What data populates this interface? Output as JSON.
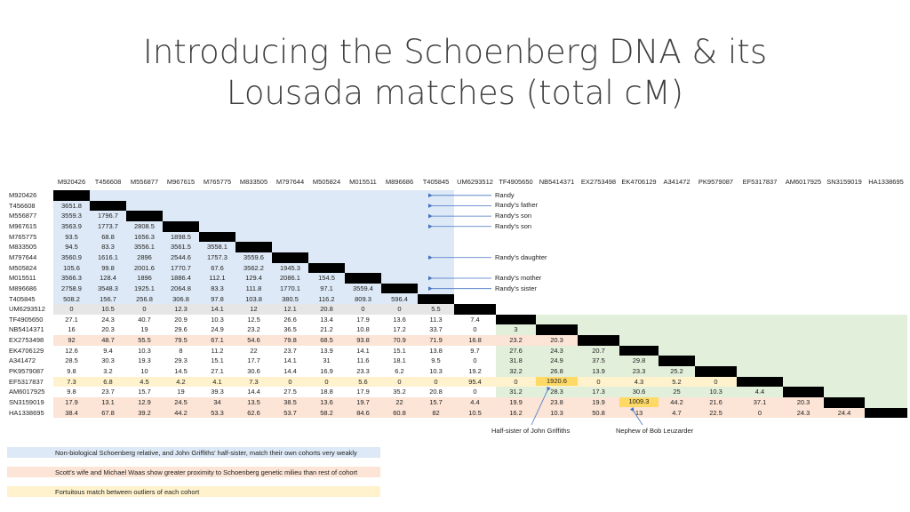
{
  "title_lines": [
    "Introducing the Schoenberg DNA & its",
    "Lousada matches (total cM)"
  ],
  "colors": {
    "title": "#404040",
    "blue_block": "#dde9f6",
    "green_block": "#e2efda",
    "salmon_row": "#fce4d6",
    "pale_yellow_row": "#fff2cc",
    "highlight": "#ffd966",
    "arrow": "#4472c4",
    "black": "#000000"
  },
  "matrix": {
    "ids": [
      "M920426",
      "T456608",
      "M556877",
      "M967615",
      "M765775",
      "M833505",
      "M797644",
      "M505824",
      "M015511",
      "M896686",
      "T405845",
      "UM6293512",
      "TF4905650",
      "NB5414371",
      "EX2753498",
      "EK4706129",
      "A341472",
      "PK9579087",
      "EF5317837",
      "AM6017925",
      "SN3159019",
      "HA1338695"
    ],
    "rows": [
      [],
      [
        "3651.8"
      ],
      [
        "3559.3",
        "1796.7"
      ],
      [
        "3563.9",
        "1773.7",
        "2808.5"
      ],
      [
        "93.5",
        "68.8",
        "1656.3",
        "1898.5"
      ],
      [
        "94.5",
        "83.3",
        "3556.1",
        "3561.5",
        "3558.1"
      ],
      [
        "3560.9",
        "1616.1",
        "2896",
        "2544.6",
        "1757.3",
        "3559.6"
      ],
      [
        "105.6",
        "99.8",
        "2001.6",
        "1770.7",
        "67.6",
        "3562.2",
        "1945.3"
      ],
      [
        "3566.3",
        "128.4",
        "1896",
        "1886.4",
        "112.1",
        "129.4",
        "2086.1",
        "154.5"
      ],
      [
        "2758.9",
        "3548.3",
        "1925.1",
        "2064.8",
        "83.3",
        "111.8",
        "1770.1",
        "97.1",
        "3559.4"
      ],
      [
        "508.2",
        "156.7",
        "256.8",
        "306.8",
        "97.8",
        "103.8",
        "380.5",
        "116.2",
        "809.3",
        "596.4"
      ],
      [
        "0",
        "10.5",
        "0",
        "12.3",
        "14.1",
        "12",
        "12.1",
        "20.8",
        "0",
        "0",
        "5.5"
      ],
      [
        "27.1",
        "24.3",
        "40.7",
        "20.9",
        "10.3",
        "12.5",
        "26.6",
        "13.4",
        "17.9",
        "13.6",
        "11.3",
        "7.4"
      ],
      [
        "16",
        "20.3",
        "19",
        "29.6",
        "24.9",
        "23.2",
        "36.5",
        "21.2",
        "10.8",
        "17.2",
        "33.7",
        "0",
        "3"
      ],
      [
        "92",
        "48.7",
        "55.5",
        "79.5",
        "67.1",
        "54.6",
        "79.8",
        "68.5",
        "93.8",
        "70.9",
        "71.9",
        "16.8",
        "23.2",
        "20.3"
      ],
      [
        "12.6",
        "9.4",
        "10.3",
        "8",
        "11.2",
        "22",
        "23.7",
        "13.9",
        "14.1",
        "15.1",
        "13.8",
        "9.7",
        "27.6",
        "24.3",
        "20.7"
      ],
      [
        "28.5",
        "30.3",
        "19.3",
        "29.3",
        "15.1",
        "17.7",
        "14.1",
        "31",
        "11.6",
        "18.1",
        "9.5",
        "0",
        "31.8",
        "24.9",
        "37.5",
        "29.8"
      ],
      [
        "9.8",
        "3.2",
        "10",
        "14.5",
        "27.1",
        "30.6",
        "14.4",
        "16.9",
        "23.3",
        "6.2",
        "10.3",
        "19.2",
        "32.2",
        "26.8",
        "13.9",
        "23.3",
        "25.2"
      ],
      [
        "7.3",
        "6.8",
        "4.5",
        "4.2",
        "4.1",
        "7.3",
        "0",
        "0",
        "5.6",
        "0",
        "0",
        "95.4",
        "0",
        "1920.6",
        "0",
        "4.3",
        "5.2",
        "0"
      ],
      [
        "9.8",
        "23.7",
        "15.7",
        "19",
        "39.3",
        "14.4",
        "27.5",
        "18.8",
        "17.9",
        "35.2",
        "20.8",
        "0",
        "31.2",
        "28.3",
        "17.3",
        "30.6",
        "25",
        "10.3",
        "4.4"
      ],
      [
        "17.9",
        "13.1",
        "12.9",
        "24.5",
        "34",
        "13.5",
        "38.5",
        "13.6",
        "19.7",
        "22",
        "15.7",
        "4.4",
        "19.9",
        "23.8",
        "19.9",
        "1009.3",
        "44.2",
        "21.6",
        "37.1",
        "20.3"
      ],
      [
        "38.4",
        "67.8",
        "39.2",
        "44.2",
        "53.3",
        "62.6",
        "53.7",
        "58.2",
        "84.6",
        "60.8",
        "82",
        "10.5",
        "16.2",
        "10.3",
        "50.8",
        "13",
        "4.7",
        "22.5",
        "0",
        "24.3",
        "24.4"
      ]
    ]
  },
  "annotations": [
    {
      "row": 0,
      "text": "Randy"
    },
    {
      "row": 1,
      "text": "Randy's father"
    },
    {
      "row": 2,
      "text": "Randy's son"
    },
    {
      "row": 3,
      "text": "Randy's son"
    },
    {
      "row": 6,
      "text": "Randy's daughter"
    },
    {
      "row": 8,
      "text": "Randy's mother"
    },
    {
      "row": 9,
      "text": "Randy's sister"
    }
  ],
  "bottom_notes": [
    "Half-sister of John Griffiths",
    "Nephew of Bob Leuzarder"
  ],
  "legend": [
    "Non-biological Schoenberg relative, and John Griffiths' half-sister, match their own cohorts very weakly",
    "Scott's wife and Michael Waas show greater proximity to Schoenberg genetic milieu than rest of cohort",
    "Fortuitous match between outliers of each cohort"
  ]
}
